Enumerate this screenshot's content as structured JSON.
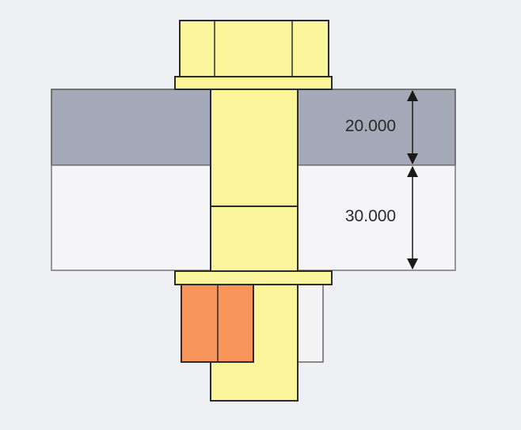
{
  "dimensions": {
    "upper_plate_thickness": "20.000",
    "lower_plate_thickness": "30.000"
  },
  "colors": {
    "background": "#eef0f3",
    "upper_plate": "#a4a9b8",
    "lower_plate": "#f5f5f7",
    "bolt": "#fbf59c",
    "nut": "#f7955a",
    "nut_back": "#f4f4f4",
    "outline": "#2b2b2b",
    "dimension_line": "#1a1a1a"
  }
}
